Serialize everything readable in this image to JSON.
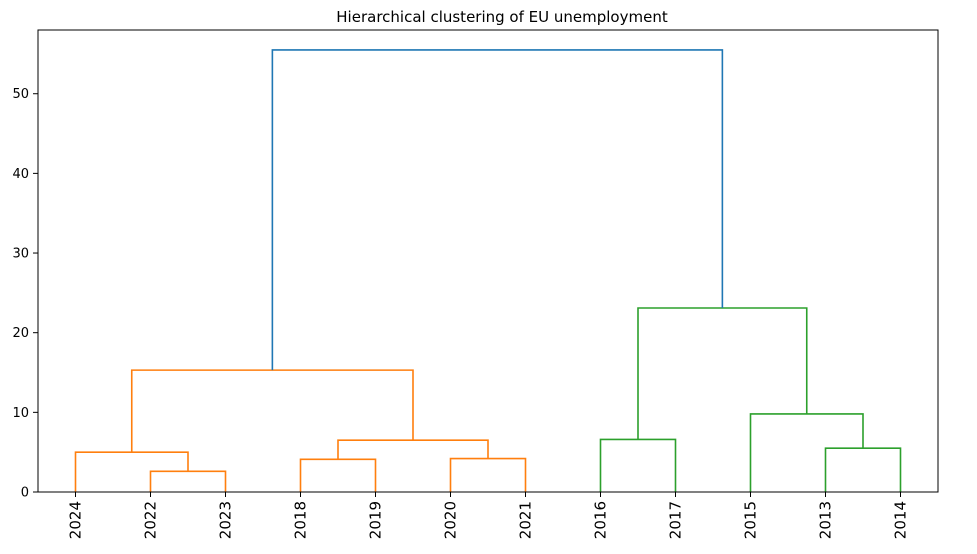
{
  "chart_data": {
    "type": "dendrogram",
    "title": "Hierarchical clustering of EU unemployment",
    "xlabel": "",
    "ylabel": "",
    "leaves": [
      "2024",
      "2022",
      "2023",
      "2018",
      "2019",
      "2020",
      "2021",
      "2016",
      "2017",
      "2015",
      "2013",
      "2014"
    ],
    "ylim": [
      0,
      58
    ],
    "yticks": [
      0,
      10,
      20,
      30,
      40,
      50
    ],
    "grid": false,
    "links": [
      {
        "left": 1,
        "right": 2,
        "height": 2.6,
        "color": "#ff7f0e"
      },
      {
        "left": 0,
        "right": "1-2",
        "height": 5.0,
        "color": "#ff7f0e"
      },
      {
        "left": 3,
        "right": 4,
        "height": 4.1,
        "color": "#ff7f0e"
      },
      {
        "left": 5,
        "right": 6,
        "height": 4.2,
        "color": "#ff7f0e"
      },
      {
        "left": "3-4",
        "right": "5-6",
        "height": 6.5,
        "color": "#ff7f0e"
      },
      {
        "left": "0-2",
        "right": "3-6",
        "height": 15.3,
        "color": "#ff7f0e"
      },
      {
        "left": 7,
        "right": 8,
        "height": 6.6,
        "color": "#2ca02c"
      },
      {
        "left": 10,
        "right": 11,
        "height": 5.5,
        "color": "#2ca02c"
      },
      {
        "left": 9,
        "right": "10-11",
        "height": 9.8,
        "color": "#2ca02c"
      },
      {
        "left": "7-8",
        "right": "9-11",
        "height": 23.1,
        "color": "#2ca02c"
      },
      {
        "left": "0-6",
        "right": "7-11",
        "height": 55.5,
        "color": "#1f77b4"
      }
    ]
  }
}
